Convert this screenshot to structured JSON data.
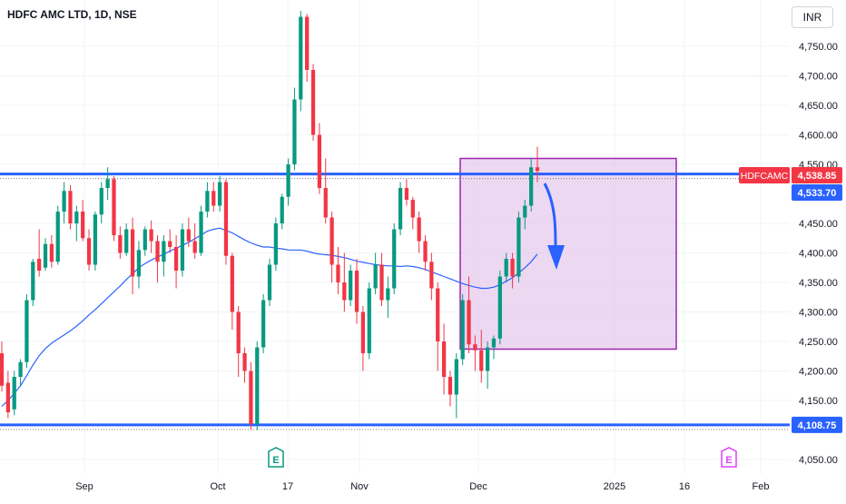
{
  "header": {
    "symbol_title": "HDFC AMC LTD, 1D, NSE",
    "currency_button": "INR"
  },
  "chart_data": {
    "type": "candlestick",
    "symbol": "HDFCAMC",
    "y_axis": {
      "ticks": [
        "4,750.00",
        "4,700.00",
        "4,650.00",
        "4,600.00",
        "4,550.00",
        "4,450.00",
        "4,400.00",
        "4,350.00",
        "4,300.00",
        "4,250.00",
        "4,200.00",
        "4,150.00",
        "4,050.00"
      ],
      "tick_values": [
        4750,
        4700,
        4650,
        4600,
        4550,
        4450,
        4400,
        4350,
        4300,
        4250,
        4200,
        4150,
        4050
      ],
      "range": [
        4040,
        4800
      ]
    },
    "x_axis": {
      "labels": [
        "Sep",
        "Oct",
        "17",
        "Nov",
        "Dec",
        "2025",
        "16",
        "Feb"
      ]
    },
    "price_labels": [
      {
        "name": "last_price",
        "text": "4,538.85",
        "symbol_tag": "HDFCAMC",
        "value": 4538.85,
        "color": "#f23645"
      },
      {
        "name": "resistance",
        "text": "4,533.70",
        "value": 4533.7,
        "color": "#2962ff"
      },
      {
        "name": "support",
        "text": "4,108.75",
        "value": 4108.75,
        "color": "#2962ff"
      }
    ],
    "horizontal_lines": [
      {
        "value": 4533.7,
        "color": "#2962ff"
      },
      {
        "value": 4108.75,
        "color": "#2962ff"
      }
    ],
    "zone": {
      "price_top": 4560,
      "price_bottom": 4237,
      "fill": "#e1bee7",
      "border": "#9c27b0"
    },
    "earnings_markers": [
      {
        "label": "E",
        "color": "#089981"
      },
      {
        "label": "E",
        "color": "#e040fb"
      }
    ],
    "colors": {
      "up": "#089981",
      "down": "#f23645",
      "ma": "#2962ff"
    },
    "candles": [
      [
        4230,
        4250,
        4165,
        4175
      ],
      [
        4180,
        4200,
        4120,
        4130
      ],
      [
        4135,
        4200,
        4125,
        4190
      ],
      [
        4190,
        4220,
        4175,
        4215
      ],
      [
        4215,
        4330,
        4205,
        4320
      ],
      [
        4320,
        4390,
        4310,
        4385
      ],
      [
        4390,
        4440,
        4360,
        4370
      ],
      [
        4375,
        4425,
        4370,
        4415
      ],
      [
        4415,
        4430,
        4375,
        4385
      ],
      [
        4385,
        4480,
        4380,
        4470
      ],
      [
        4470,
        4520,
        4450,
        4505
      ],
      [
        4505,
        4515,
        4440,
        4450
      ],
      [
        4450,
        4480,
        4420,
        4470
      ],
      [
        4470,
        4490,
        4420,
        4425
      ],
      [
        4425,
        4440,
        4370,
        4380
      ],
      [
        4380,
        4470,
        4370,
        4465
      ],
      [
        4465,
        4520,
        4450,
        4510
      ],
      [
        4510,
        4545,
        4490,
        4525
      ],
      [
        4525,
        4530,
        4420,
        4430
      ],
      [
        4430,
        4445,
        4390,
        4400
      ],
      [
        4400,
        4450,
        4395,
        4440
      ],
      [
        4440,
        4460,
        4330,
        4360
      ],
      [
        4360,
        4420,
        4340,
        4405
      ],
      [
        4405,
        4445,
        4395,
        4440
      ],
      [
        4440,
        4455,
        4400,
        4420
      ],
      [
        4420,
        4430,
        4350,
        4385
      ],
      [
        4385,
        4430,
        4360,
        4420
      ],
      [
        4420,
        4440,
        4400,
        4410
      ],
      [
        4410,
        4430,
        4340,
        4370
      ],
      [
        4370,
        4450,
        4360,
        4440
      ],
      [
        4440,
        4460,
        4410,
        4420
      ],
      [
        4420,
        4450,
        4390,
        4400
      ],
      [
        4400,
        4480,
        4395,
        4470
      ],
      [
        4470,
        4520,
        4460,
        4505
      ],
      [
        4505,
        4520,
        4470,
        4480
      ],
      [
        4480,
        4530,
        4470,
        4520
      ],
      [
        4520,
        4525,
        4380,
        4395
      ],
      [
        4395,
        4400,
        4270,
        4300
      ],
      [
        4300,
        4310,
        4190,
        4230
      ],
      [
        4230,
        4240,
        4180,
        4200
      ],
      [
        4200,
        4215,
        4100,
        4110
      ],
      [
        4110,
        4250,
        4100,
        4240
      ],
      [
        4240,
        4330,
        4230,
        4320
      ],
      [
        4320,
        4390,
        4310,
        4380
      ],
      [
        4380,
        4460,
        4370,
        4450
      ],
      [
        4450,
        4500,
        4440,
        4495
      ],
      [
        4495,
        4560,
        4480,
        4550
      ],
      [
        4550,
        4680,
        4540,
        4660
      ],
      [
        4660,
        4810,
        4640,
        4800
      ],
      [
        4800,
        4805,
        4690,
        4710
      ],
      [
        4710,
        4720,
        4590,
        4600
      ],
      [
        4600,
        4620,
        4500,
        4510
      ],
      [
        4510,
        4560,
        4450,
        4460
      ],
      [
        4460,
        4470,
        4350,
        4380
      ],
      [
        4380,
        4410,
        4330,
        4350
      ],
      [
        4350,
        4400,
        4300,
        4320
      ],
      [
        4320,
        4380,
        4310,
        4370
      ],
      [
        4370,
        4390,
        4280,
        4300
      ],
      [
        4300,
        4310,
        4200,
        4230
      ],
      [
        4230,
        4350,
        4220,
        4340
      ],
      [
        4340,
        4400,
        4330,
        4380
      ],
      [
        4380,
        4400,
        4310,
        4320
      ],
      [
        4320,
        4360,
        4290,
        4340
      ],
      [
        4340,
        4450,
        4330,
        4440
      ],
      [
        4440,
        4520,
        4430,
        4510
      ],
      [
        4510,
        4525,
        4480,
        4490
      ],
      [
        4490,
        4495,
        4440,
        4460
      ],
      [
        4460,
        4470,
        4400,
        4420
      ],
      [
        4420,
        4430,
        4370,
        4385
      ],
      [
        4385,
        4400,
        4320,
        4340
      ],
      [
        4340,
        4350,
        4200,
        4250
      ],
      [
        4250,
        4280,
        4160,
        4190
      ],
      [
        4190,
        4200,
        4140,
        4160
      ],
      [
        4160,
        4230,
        4120,
        4220
      ],
      [
        4220,
        4330,
        4210,
        4320
      ],
      [
        4320,
        4360,
        4230,
        4245
      ],
      [
        4245,
        4260,
        4200,
        4235
      ],
      [
        4235,
        4270,
        4180,
        4200
      ],
      [
        4200,
        4250,
        4170,
        4240
      ],
      [
        4240,
        4260,
        4220,
        4255
      ],
      [
        4255,
        4370,
        4245,
        4360
      ],
      [
        4360,
        4400,
        4350,
        4390
      ],
      [
        4390,
        4400,
        4340,
        4360
      ],
      [
        4360,
        4470,
        4350,
        4460
      ],
      [
        4460,
        4490,
        4440,
        4480
      ],
      [
        4480,
        4560,
        4470,
        4545
      ],
      [
        4545,
        4580,
        4520,
        4538.85
      ]
    ],
    "moving_average": [
      4140,
      4150,
      4162,
      4175,
      4192,
      4210,
      4226,
      4238,
      4247,
      4254,
      4261,
      4268,
      4276,
      4285,
      4295,
      4304,
      4314,
      4324,
      4334,
      4344,
      4355,
      4365,
      4375,
      4382,
      4388,
      4393,
      4398,
      4403,
      4408,
      4413,
      4418,
      4424,
      4430,
      4437,
      4440,
      4442,
      4438,
      4434,
      4428,
      4422,
      4417,
      4413,
      4410,
      4410,
      4408,
      4407,
      4405,
      4405,
      4405,
      4403,
      4400,
      4398,
      4397,
      4396,
      4394,
      4392,
      4389,
      4386,
      4384,
      4382,
      4380,
      4379,
      4378,
      4378,
      4377,
      4378,
      4377,
      4375,
      4372,
      4368,
      4364,
      4360,
      4356,
      4352,
      4348,
      4345,
      4342,
      4340,
      4340,
      4342,
      4346,
      4352,
      4358,
      4366,
      4375,
      4385,
      4398
    ]
  }
}
